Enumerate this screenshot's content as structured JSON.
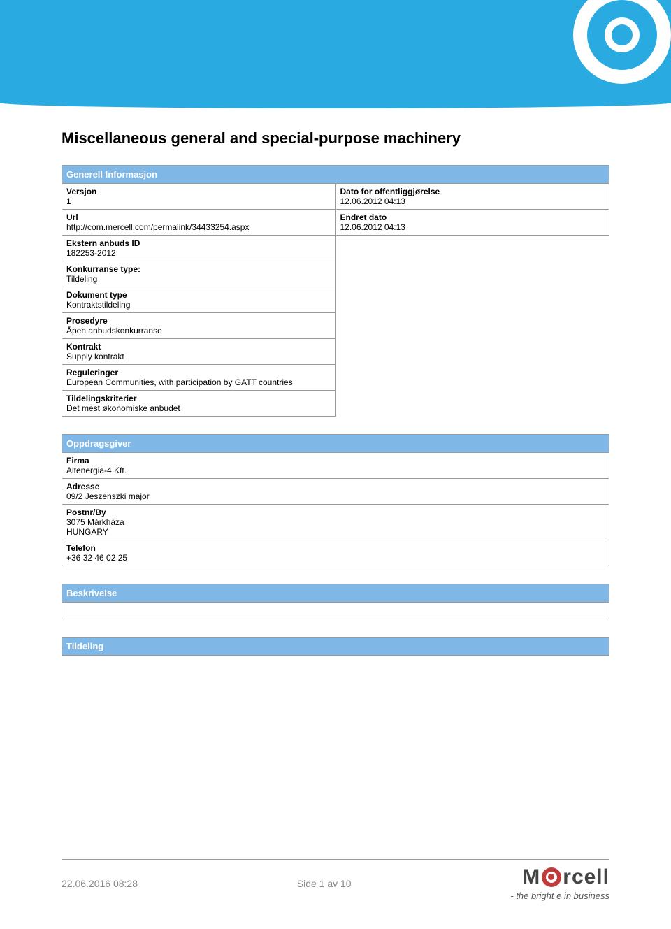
{
  "colors": {
    "banner_bg": "#29abe2",
    "section_header_bg": "#7fb8e6",
    "section_header_text": "#ffffff",
    "border": "#999999",
    "footer_text": "#888888",
    "logo_red": "#c23b3b"
  },
  "page_title": "Miscellaneous general and special-purpose machinery",
  "sections": {
    "general": {
      "header": "Generell Informasjon",
      "left_rows": [
        {
          "label": "Versjon",
          "value": "1"
        },
        {
          "label": "Url",
          "value": "http://com.mercell.com/permalink/34433254.aspx"
        },
        {
          "label": "Ekstern anbuds ID",
          "value": "182253-2012"
        },
        {
          "label": "Konkurranse type:",
          "value": "Tildeling"
        },
        {
          "label": "Dokument type",
          "value": "Kontraktstildeling"
        },
        {
          "label": "Prosedyre",
          "value": "Åpen anbudskonkurranse"
        },
        {
          "label": "Kontrakt",
          "value": "Supply kontrakt"
        },
        {
          "label": "Reguleringer",
          "value": "European Communities, with participation by GATT countries"
        },
        {
          "label": "Tildelingskriterier",
          "value": "Det mest økonomiske anbudet"
        }
      ],
      "right_rows": [
        {
          "label": "Dato for offentliggjørelse",
          "value": "12.06.2012 04:13"
        },
        {
          "label": "Endret dato",
          "value": "12.06.2012 04:13"
        }
      ]
    },
    "client": {
      "header": "Oppdragsgiver",
      "rows": [
        {
          "label": "Firma",
          "value": "Altenergia-4 Kft."
        },
        {
          "label": "Adresse",
          "value": "09/2 Jeszenszki major"
        },
        {
          "label": "Postnr/By",
          "value": "3075 Márkháza\nHUNGARY"
        },
        {
          "label": "Telefon",
          "value": "+36 32 46 02 25"
        }
      ]
    },
    "description": {
      "header": "Beskrivelse"
    },
    "award": {
      "header": "Tildeling"
    }
  },
  "footer": {
    "timestamp": "22.06.2016 08:28",
    "page_info": "Side 1 av 10",
    "logo_text_1": "M",
    "logo_text_2": "rcell",
    "tagline": "- the bright e in business"
  }
}
